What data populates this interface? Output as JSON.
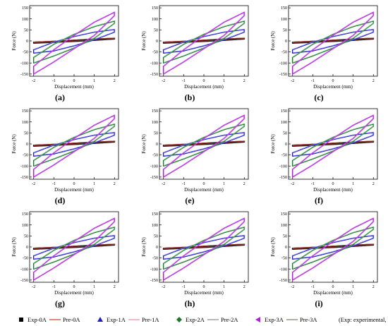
{
  "chart_data": {
    "type": "line",
    "panel_labels": [
      "(a)",
      "(b)",
      "(c)",
      "(d)",
      "(e)",
      "(f)",
      "(g)",
      "(h)",
      "(i)"
    ],
    "xlabel": "Displacement (mm)",
    "ylabel": "Force (N)",
    "xlim": [
      -2.2,
      2.2
    ],
    "ylim": [
      -160,
      160
    ],
    "xticks": [
      -2,
      -1,
      0,
      1,
      2
    ],
    "yticks": [
      -150,
      -100,
      -50,
      0,
      50,
      100,
      150
    ],
    "grid": false,
    "legend_position": "bottom",
    "loops": [
      {
        "current": "0A",
        "color": "#1a1a1a",
        "x": [
          -2,
          -1,
          0,
          1,
          2
        ],
        "upper": [
          -6,
          -2,
          3,
          8,
          12
        ],
        "lower": [
          -10,
          -6,
          -2,
          3,
          9
        ]
      },
      {
        "current": "1A",
        "color": "#1f1fd0",
        "x": [
          -2,
          -1,
          0,
          1,
          2
        ],
        "upper": [
          -40,
          -5,
          20,
          40,
          52
        ],
        "lower": [
          -55,
          -45,
          -22,
          5,
          40
        ]
      },
      {
        "current": "2A",
        "color": "#1b7a2c",
        "x": [
          -2,
          -1,
          0,
          1,
          2
        ],
        "upper": [
          -75,
          -15,
          30,
          65,
          90
        ],
        "lower": [
          -100,
          -68,
          -32,
          12,
          80
        ]
      },
      {
        "current": "3A",
        "color": "#b01ee0",
        "x": [
          -2,
          -1,
          0,
          1,
          2
        ],
        "upper": [
          -115,
          -40,
          25,
          85,
          130
        ],
        "lower": [
          -150,
          -95,
          -35,
          25,
          115
        ]
      }
    ],
    "legend": [
      {
        "label": "Exp-0A",
        "color": "#000000",
        "marker": "square"
      },
      {
        "label": "Pre-0A",
        "color": "#c0392b",
        "marker": "line"
      },
      {
        "label": "Exp-1A",
        "color": "#1f1fd0",
        "marker": "triangle"
      },
      {
        "label": "Pre-1A",
        "color": "#e58aa0",
        "marker": "line"
      },
      {
        "label": "Exp-2A",
        "color": "#1b7a2c",
        "marker": "diamond"
      },
      {
        "label": "Pre-2A",
        "color": "#888888",
        "marker": "line"
      },
      {
        "label": "Exp-3A",
        "color": "#b01ee0",
        "marker": "tri-left"
      },
      {
        "label": "Pre-3A",
        "color": "#7a7a5a",
        "marker": "line"
      }
    ],
    "legend_note": "(Exp: experimental, Pre: predicted)"
  }
}
